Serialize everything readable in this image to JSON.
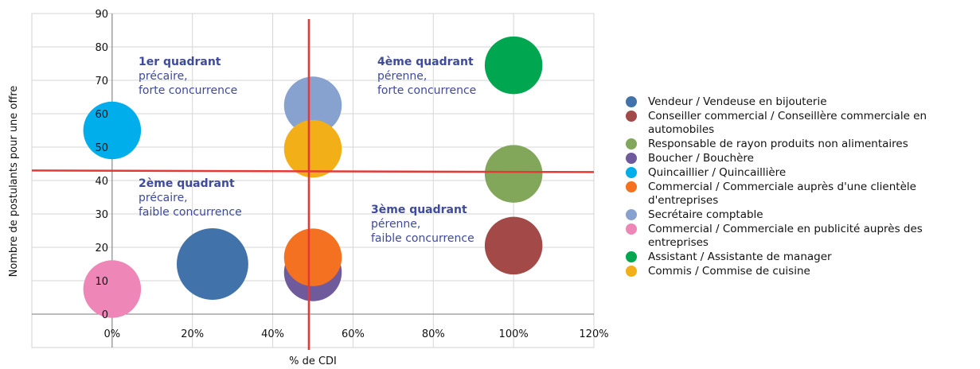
{
  "chart_data": {
    "type": "bubble",
    "xlabel": "% de CDI",
    "ylabel": "Nombre de postulants pour une offre",
    "xlim": [
      -20,
      120
    ],
    "ylim": [
      -10,
      90
    ],
    "x_ticks": [
      "0%",
      "20%",
      "40%",
      "60%",
      "80%",
      "100%",
      "120%"
    ],
    "y_ticks": [
      "0",
      "10",
      "20",
      "30",
      "40",
      "50",
      "60",
      "70",
      "80",
      "90"
    ],
    "grid": true,
    "legend_position": "right",
    "reference_lines": {
      "x": 49,
      "y": 43,
      "color": "#e53935"
    },
    "quadrants": [
      {
        "title": "1er quadrant",
        "lines": [
          "précaire,",
          "forte concurrence"
        ]
      },
      {
        "title": "4ème quadrant",
        "lines": [
          "pérenne,",
          "forte concurrence"
        ]
      },
      {
        "title": "2ème quadrant",
        "lines": [
          "précaire,",
          "faible concurrence"
        ]
      },
      {
        "title": "3ème quadrant",
        "lines": [
          "pérenne,",
          "faible concurrence"
        ]
      }
    ],
    "series": [
      {
        "name": "Vendeur / Vendeuse en bijouterie",
        "x": 25,
        "y": 15,
        "size": 1.55,
        "color": "#4272aa"
      },
      {
        "name": "Conseiller commercial / Conseillère commerciale en automobiles",
        "x": 100,
        "y": 20.5,
        "size": 1.25,
        "color": "#a34a48"
      },
      {
        "name": "Responsable de rayon produits non alimentaires",
        "x": 100,
        "y": 42,
        "size": 1.25,
        "color": "#82a65a"
      },
      {
        "name": "Boucher / Bouchère",
        "x": 50,
        "y": 12.5,
        "size": 1.25,
        "color": "#6f5a9c"
      },
      {
        "name": "Quincaillier / Quincaillière",
        "x": 0,
        "y": 55,
        "size": 1.25,
        "color": "#00aeeb"
      },
      {
        "name": "Commercial / Commerciale auprès d'une clientèle d'entreprises",
        "x": 50,
        "y": 17,
        "size": 1.25,
        "color": "#f47121"
      },
      {
        "name": "Secrétaire comptable",
        "x": 50,
        "y": 62.5,
        "size": 1.25,
        "color": "#87a2cf"
      },
      {
        "name": "Commercial / Commerciale en publicité auprès des entreprises",
        "x": 0,
        "y": 7.5,
        "size": 1.25,
        "color": "#ef86b8"
      },
      {
        "name": "Assistant / Assistante de manager",
        "x": 100,
        "y": 74.5,
        "size": 1.25,
        "color": "#00a650"
      },
      {
        "name": "Commis / Commise de cuisine",
        "x": 50,
        "y": 49.5,
        "size": 1.25,
        "color": "#f2af18"
      }
    ]
  }
}
